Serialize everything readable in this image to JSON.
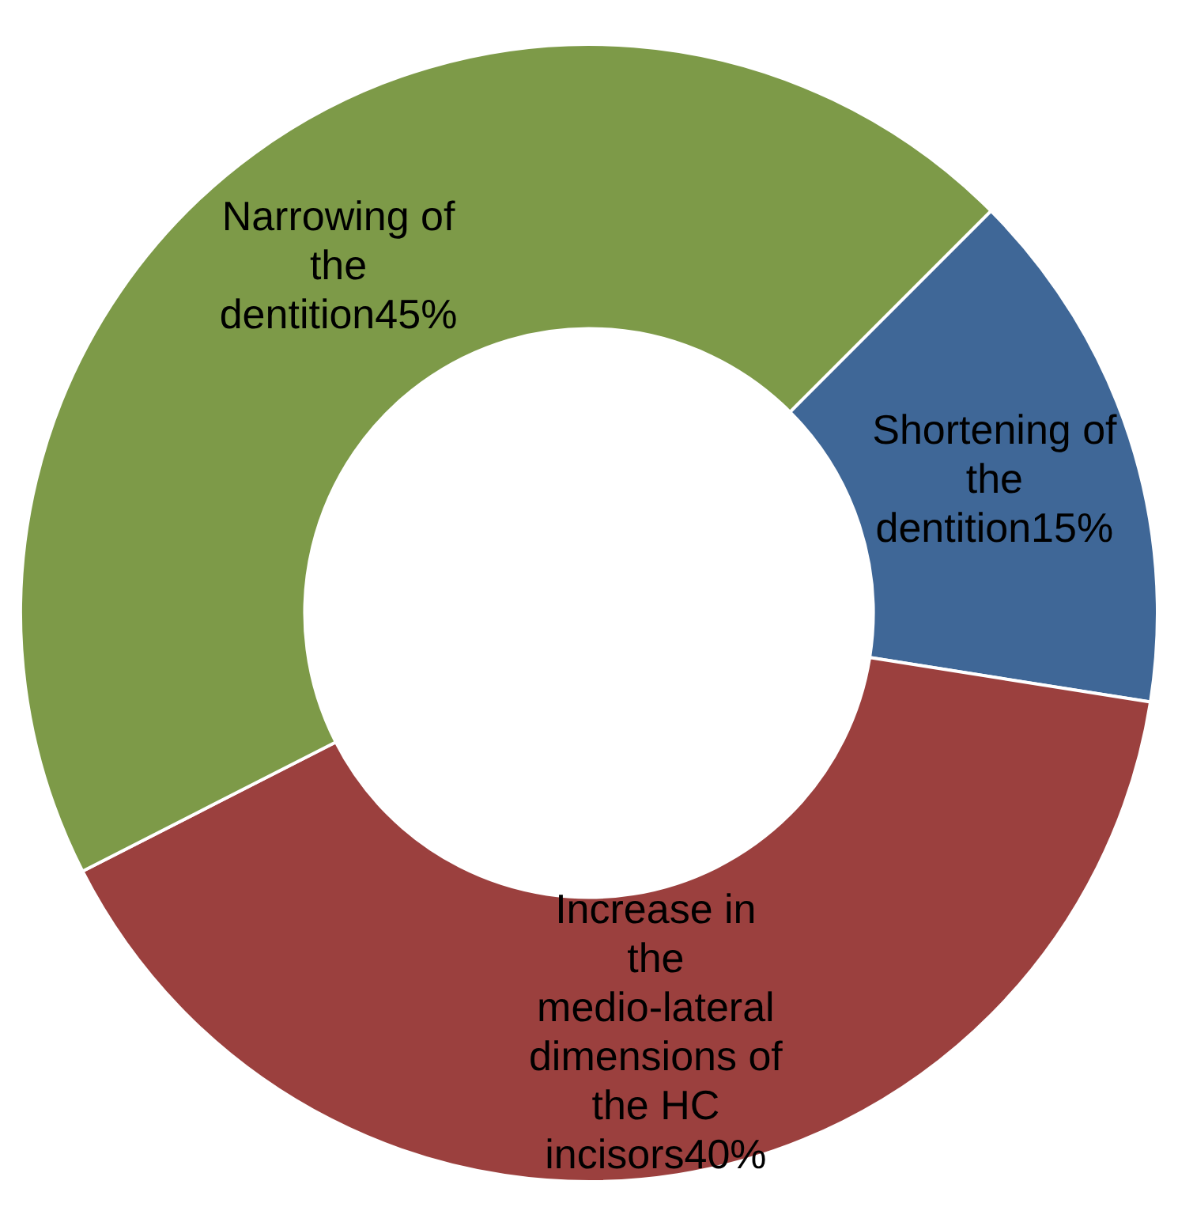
{
  "chart_data": {
    "type": "donut",
    "categories": [
      "Shortening of the dentition",
      "Increase in the medio-lateral dimensions of the HC incisors",
      "Narrowing of the dentition"
    ],
    "values": [
      15,
      40,
      45
    ],
    "value_labels": [
      "15%",
      "40%",
      "45%"
    ],
    "colors": [
      "#3f6797",
      "#9b403e",
      "#7d9a48"
    ],
    "legend": false
  }
}
